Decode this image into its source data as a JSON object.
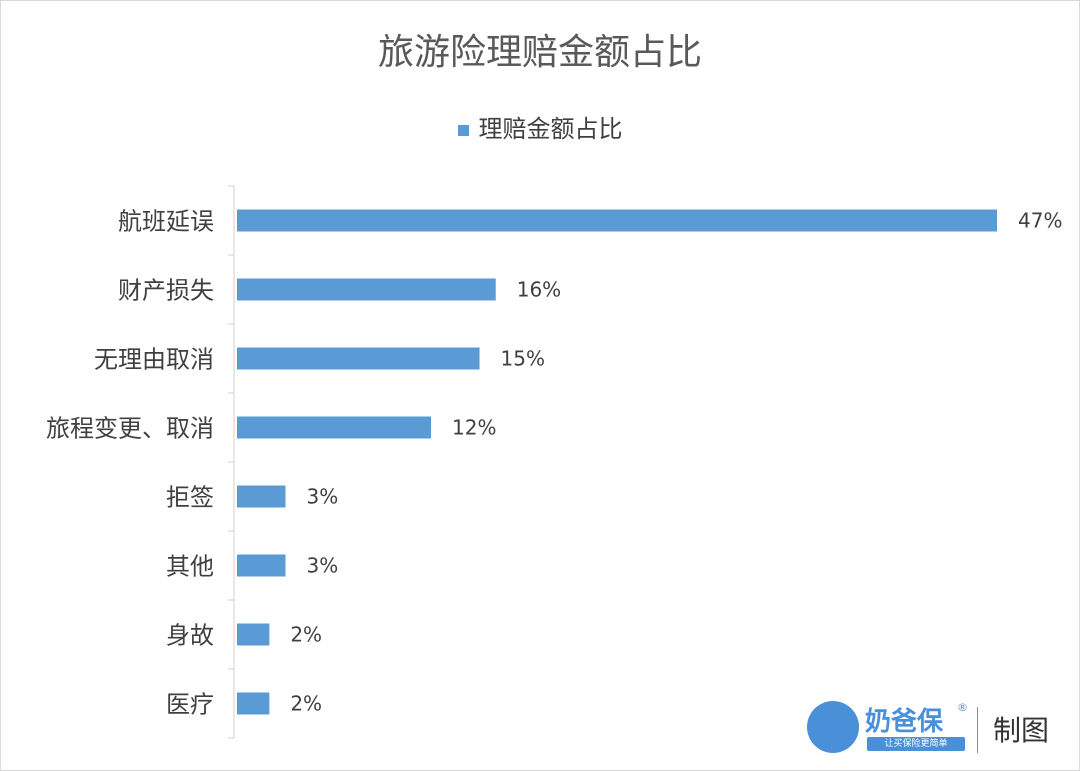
{
  "chart_data": {
    "type": "bar",
    "orientation": "horizontal",
    "title": "旅游险理赔金额占比",
    "legend": [
      "理赔金额占比"
    ],
    "legend_position": "top",
    "categories": [
      "航班延误",
      "财产损失",
      "无理由取消",
      "旅程变更、取消",
      "拒签",
      "其他",
      "身故",
      "医疗"
    ],
    "values": [
      47,
      16,
      15,
      12,
      3,
      3,
      2,
      2
    ],
    "labels": [
      "47%",
      "16%",
      "15%",
      "12%",
      "3%",
      "3%",
      "2%",
      "2%"
    ],
    "unit": "%",
    "color": "#5b9bd5",
    "grid": false
  },
  "watermark": {
    "brand": "奶爸保",
    "registered": "®",
    "slogan": "让买保险更简单",
    "suffix": "制图"
  }
}
